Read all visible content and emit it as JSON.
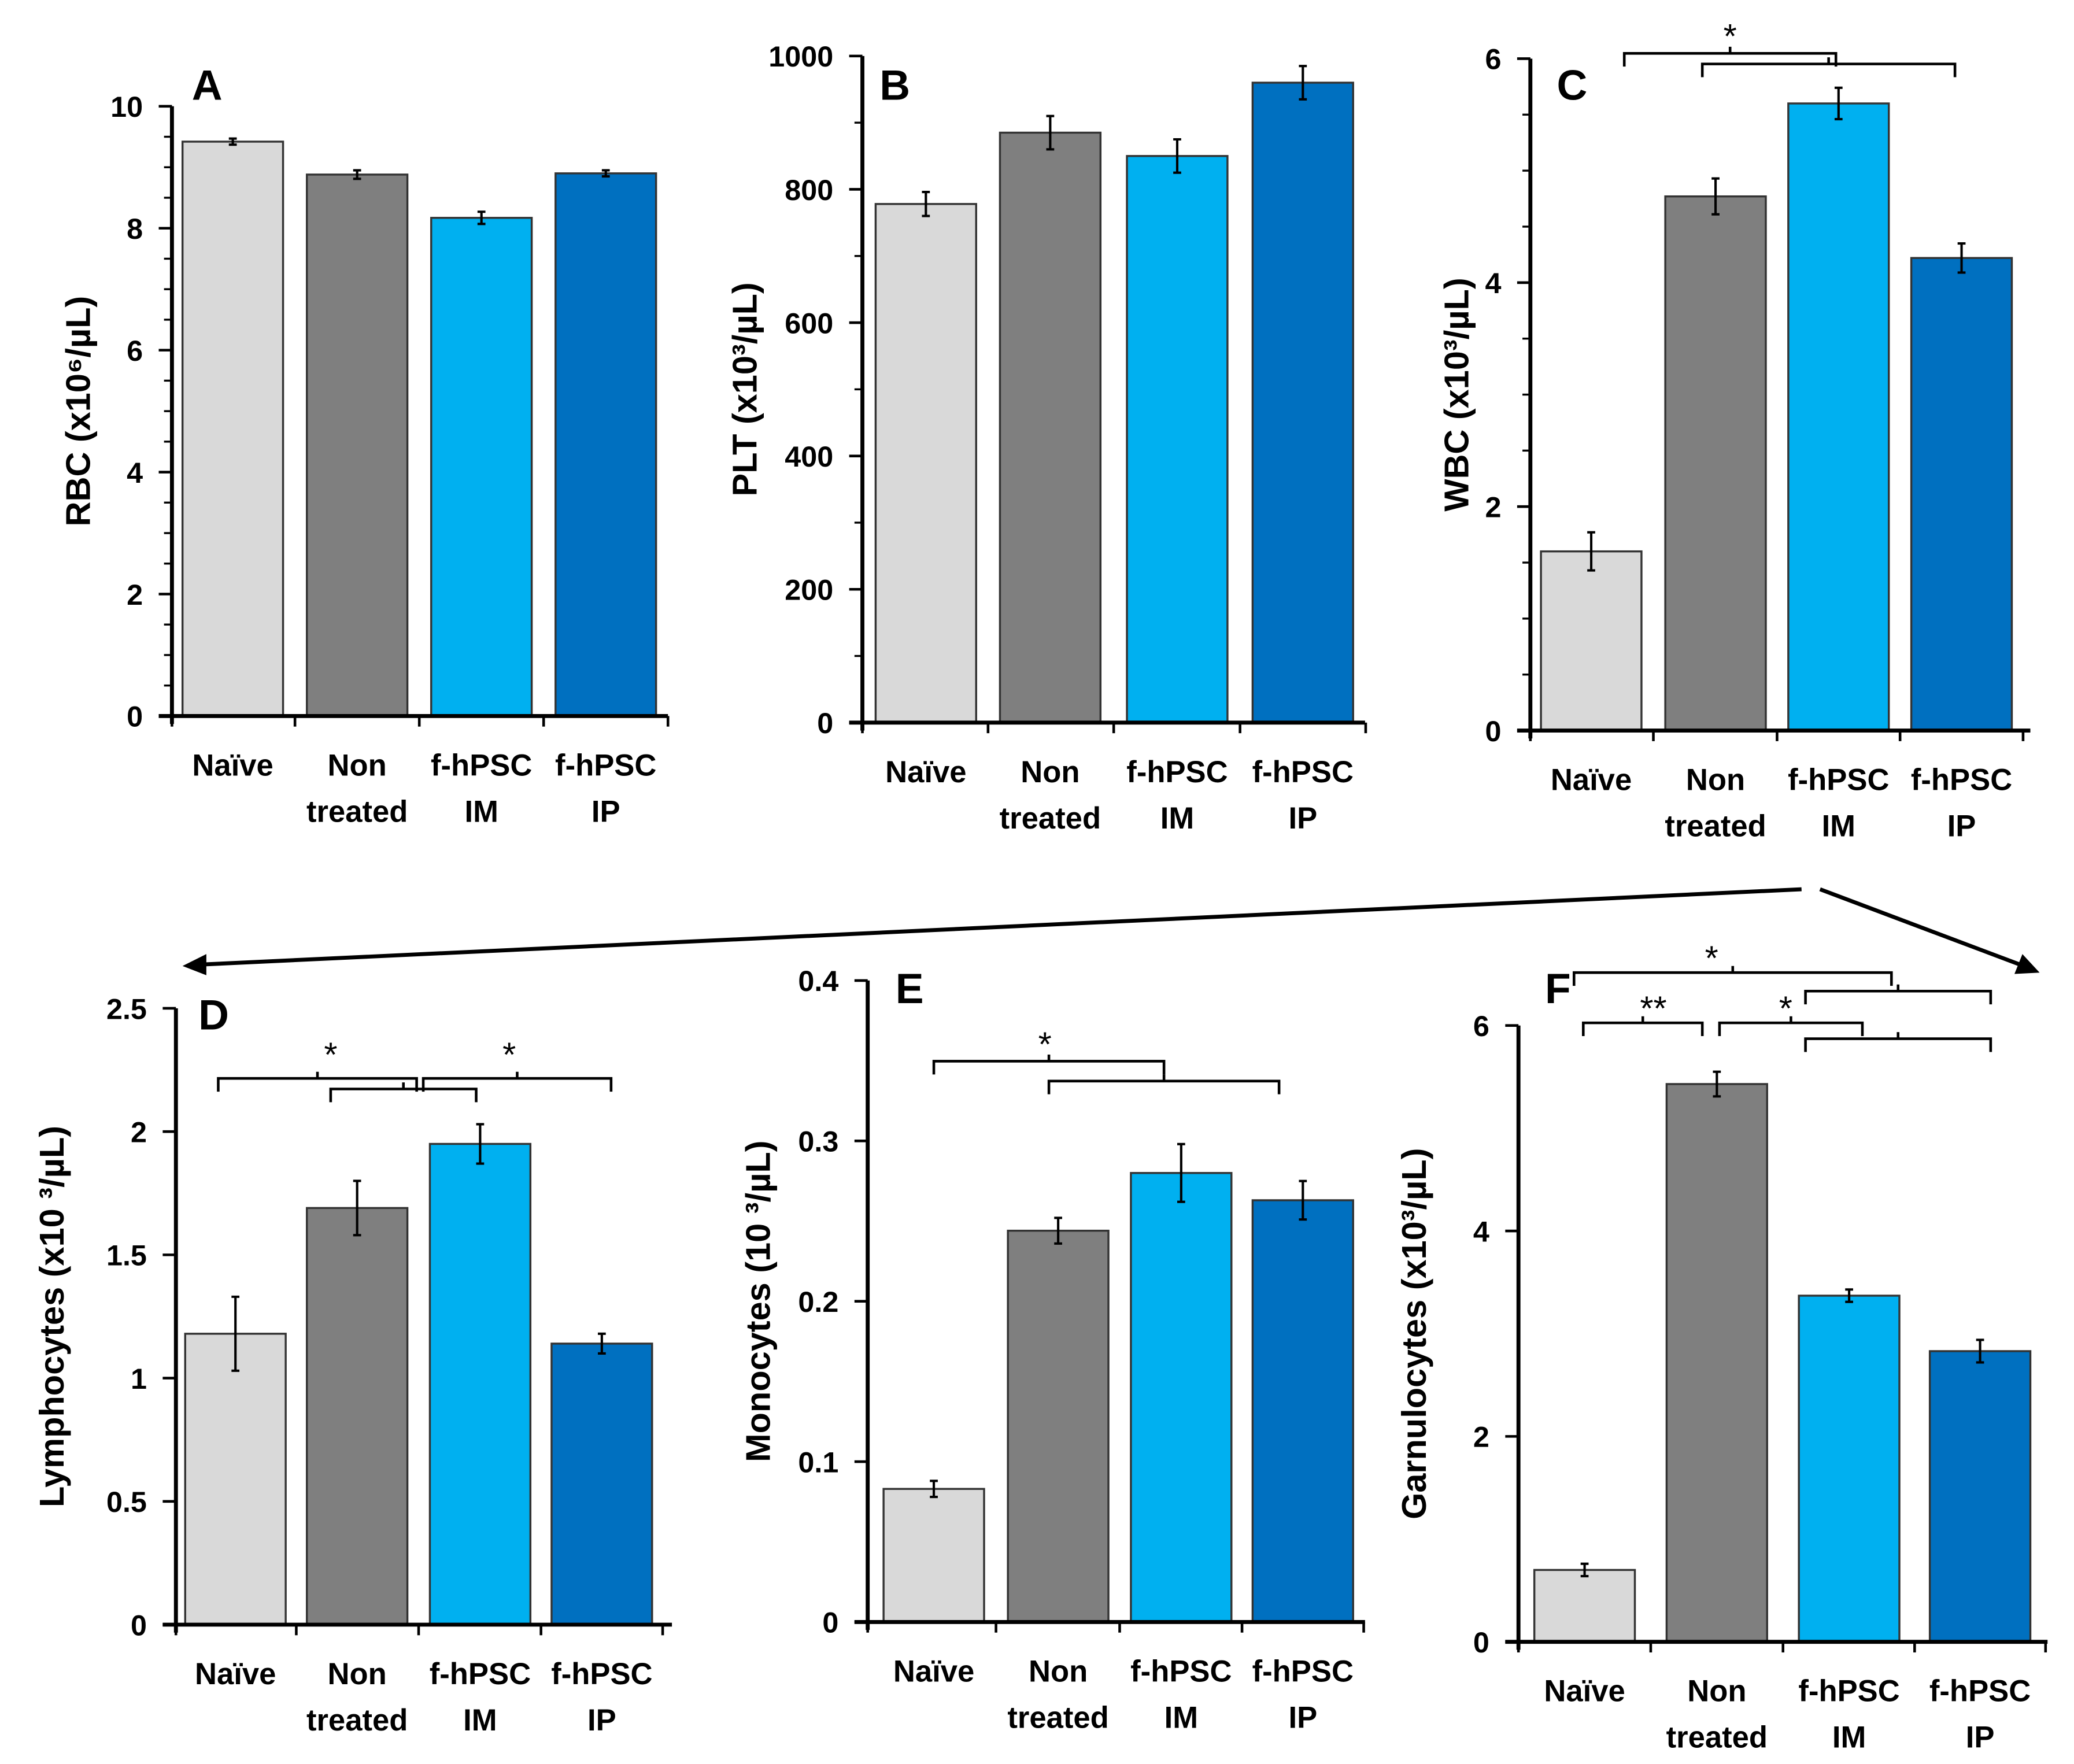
{
  "chart_data": [
    {
      "panel": "A",
      "type": "bar",
      "ylabel": "RBC (x10⁶/µL)",
      "ylim": [
        0,
        10
      ],
      "yticks": [
        0,
        2,
        4,
        6,
        8,
        10
      ],
      "minor_step": 0.5,
      "categories": [
        [
          "Naïve"
        ],
        [
          "Non",
          "treated"
        ],
        [
          "f-hPSC",
          "IM"
        ],
        [
          "f-hPSC",
          "IP"
        ]
      ],
      "values": [
        9.42,
        8.88,
        8.17,
        8.9
      ],
      "errors": [
        0.05,
        0.07,
        0.1,
        0.05
      ],
      "annotations": []
    },
    {
      "panel": "B",
      "type": "bar",
      "ylabel": "PLT  (x10³/µL)",
      "ylim": [
        0,
        1000
      ],
      "yticks": [
        0,
        200,
        400,
        600,
        800,
        1000
      ],
      "minor_step": 100,
      "categories": [
        [
          "Naïve"
        ],
        [
          "Non",
          "treated"
        ],
        [
          "f-hPSC",
          "IM"
        ],
        [
          "f-hPSC",
          "IP"
        ]
      ],
      "values": [
        778,
        885,
        850,
        960
      ],
      "errors": [
        18,
        25,
        25,
        25
      ],
      "annotations": []
    },
    {
      "panel": "C",
      "type": "bar",
      "ylabel": "WBC (x10³/µL)",
      "ylim": [
        0,
        6
      ],
      "yticks": [
        0,
        2,
        4,
        6
      ],
      "minor_step": 0.5,
      "categories": [
        [
          "Naïve"
        ],
        [
          "Non",
          "treated"
        ],
        [
          "f-hPSC",
          "IM"
        ],
        [
          "f-hPSC",
          "IP"
        ]
      ],
      "values": [
        1.6,
        4.77,
        5.6,
        4.22
      ],
      "errors": [
        0.17,
        0.16,
        0.14,
        0.13
      ],
      "annotations": [
        "*"
      ]
    },
    {
      "panel": "D",
      "type": "bar",
      "ylabel": "Lymphocytes (x10 ³/µL)",
      "ylim": [
        0,
        2.5
      ],
      "yticks": [
        0,
        0.5,
        1,
        1.5,
        2,
        2.5
      ],
      "minor_step": null,
      "categories": [
        [
          "Naïve"
        ],
        [
          "Non",
          "treated"
        ],
        [
          "f-hPSC",
          "IM"
        ],
        [
          "f-hPSC",
          "IP"
        ]
      ],
      "values": [
        1.18,
        1.69,
        1.95,
        1.14
      ],
      "errors": [
        0.15,
        0.11,
        0.08,
        0.04
      ],
      "annotations": [
        "*",
        "*"
      ]
    },
    {
      "panel": "E",
      "type": "bar",
      "ylabel": "Monocytes (10 ³/µL)",
      "ylim": [
        0,
        0.4
      ],
      "yticks": [
        0,
        0.1,
        0.2,
        0.3,
        0.4
      ],
      "minor_step": null,
      "categories": [
        [
          "Naïve"
        ],
        [
          "Non",
          "treated"
        ],
        [
          "f-hPSC",
          "IM"
        ],
        [
          "f-hPSC",
          "IP"
        ]
      ],
      "values": [
        0.083,
        0.244,
        0.28,
        0.263
      ],
      "errors": [
        0.005,
        0.008,
        0.018,
        0.012
      ],
      "annotations": [
        "*"
      ]
    },
    {
      "panel": "F",
      "type": "bar",
      "ylabel": "Garnulocytes (x10³/µL)",
      "ylim": [
        0,
        6
      ],
      "yticks": [
        0,
        2,
        4,
        6
      ],
      "minor_step": null,
      "categories": [
        [
          "Naïve"
        ],
        [
          "Non",
          "treated"
        ],
        [
          "f-hPSC",
          "IM"
        ],
        [
          "f-hPSC",
          "IP"
        ]
      ],
      "values": [
        0.7,
        5.43,
        3.37,
        2.83
      ],
      "errors": [
        0.06,
        0.12,
        0.06,
        0.11
      ],
      "annotations": [
        "*",
        "**",
        "*"
      ]
    }
  ],
  "colors": [
    "#d9d9d9",
    "#7f7f7f",
    "#00b0f0",
    "#0070c0"
  ]
}
